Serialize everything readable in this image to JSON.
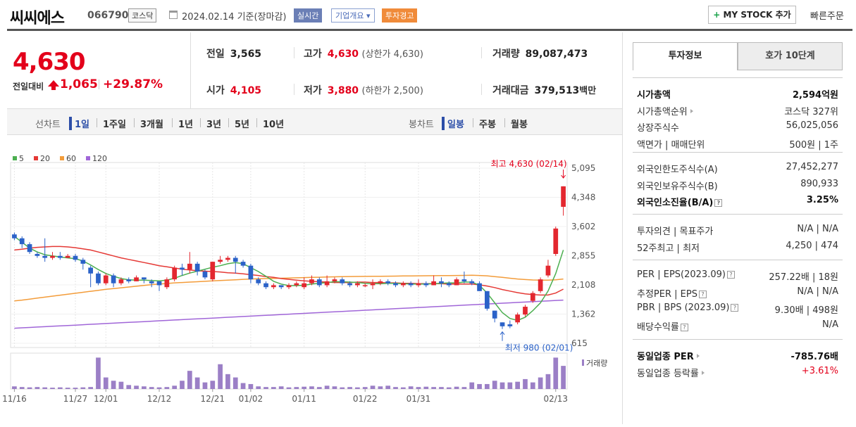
{
  "header": {
    "name": "씨씨에스",
    "code": "066790",
    "market": "코스닥",
    "date": "2024.02.14 기준(장마감)",
    "badge_realtime": "실시간",
    "badge_info": "기업개요 ▾",
    "badge_warn": "투자경고",
    "mystock_label": "MY STOCK 추가",
    "mystock_plus": "+",
    "quick_order": "빠른주문"
  },
  "price": {
    "current": "4,630",
    "prev_label": "전일대비",
    "change": "1,065",
    "change_pct": "+29.87%"
  },
  "stats": {
    "prev_close_label": "전일",
    "prev_close": "3,565",
    "high_label": "고가",
    "high": "4,630",
    "upper_limit": "(상한가 4,630)",
    "volume_label": "거래량",
    "volume": "89,087,473",
    "open_label": "시가",
    "open": "4,105",
    "low_label": "저가",
    "low": "3,880",
    "lower_limit": "(하한가 2,500)",
    "amount_label": "거래대금",
    "amount": "379,513",
    "amount_unit": "백만"
  },
  "chart_tabs": {
    "line_label": "선차트",
    "line_periods": [
      "1일",
      "1주일",
      "3개월",
      "1년",
      "3년",
      "5년",
      "10년"
    ],
    "candle_label": "봉차트",
    "candle_periods": [
      "일봉",
      "주봉",
      "월봉"
    ]
  },
  "chart_data": {
    "type": "candlestick",
    "legend": [
      {
        "name": "5",
        "color": "#4caf50"
      },
      {
        "name": "20",
        "color": "#e53935"
      },
      {
        "name": "60",
        "color": "#f39c3a"
      },
      {
        "name": "120",
        "color": "#a066d8"
      }
    ],
    "y_ticks": [
      "5,095",
      "4,348",
      "3,602",
      "2,855",
      "2,108",
      "1,362",
      "615"
    ],
    "ylim": [
      615,
      5095
    ],
    "x_labels": [
      "11/16",
      "11/27",
      "12/01",
      "12/12",
      "12/21",
      "01/02",
      "01/11",
      "01/22",
      "01/31",
      "02/13"
    ],
    "max_annotation": "최고 4,630 (02/14)",
    "min_annotation": "최저 980 (02/01)",
    "volume_label": "거래량",
    "candles": [
      [
        3400,
        3300,
        3450,
        3250
      ],
      [
        3300,
        3150,
        3350,
        3050
      ],
      [
        3150,
        2950,
        3200,
        2900
      ],
      [
        2900,
        2850,
        2950,
        2800
      ],
      [
        2850,
        2800,
        3300,
        2700
      ],
      [
        2800,
        2850,
        2950,
        2750
      ],
      [
        2850,
        2800,
        2950,
        2750
      ],
      [
        2800,
        2850,
        2900,
        2800
      ],
      [
        2850,
        2750,
        2900,
        2700
      ],
      [
        2750,
        2650,
        2800,
        2500
      ],
      [
        2550,
        2400,
        2600,
        2050
      ],
      [
        2400,
        2150,
        2450,
        2100
      ],
      [
        2150,
        2350,
        2400,
        2100
      ],
      [
        2350,
        2150,
        2400,
        2050
      ],
      [
        2150,
        2250,
        2300,
        2100
      ],
      [
        2250,
        2200,
        2300,
        2150
      ],
      [
        2200,
        2300,
        2350,
        2200
      ],
      [
        2300,
        2250,
        2300,
        2150
      ],
      [
        2200,
        2150,
        2250,
        2050
      ],
      [
        2200,
        2100,
        2200,
        1950
      ],
      [
        2050,
        2250,
        2300,
        2000
      ],
      [
        2250,
        2550,
        2600,
        2200
      ],
      [
        2550,
        2500,
        2650,
        2350
      ],
      [
        2500,
        2650,
        2950,
        2400
      ],
      [
        2650,
        2450,
        2700,
        2350
      ],
      [
        2450,
        2300,
        2500,
        2250
      ],
      [
        2250,
        2700,
        2700,
        2200
      ],
      [
        2700,
        2750,
        2850,
        2650
      ],
      [
        2750,
        2800,
        2850,
        2700
      ],
      [
        2800,
        2700,
        2850,
        2400
      ],
      [
        2700,
        2600,
        2750,
        2550
      ],
      [
        2600,
        2250,
        2650,
        2150
      ],
      [
        2250,
        2150,
        2300,
        2100
      ],
      [
        2150,
        2050,
        2200,
        2000
      ],
      [
        2050,
        2100,
        2150,
        2000
      ],
      [
        2100,
        2050,
        2100,
        2000
      ],
      [
        2050,
        2100,
        2150,
        2000
      ],
      [
        2100,
        2150,
        2200,
        2050
      ],
      [
        2050,
        2150,
        2300,
        2000
      ],
      [
        2150,
        2250,
        2350,
        2100
      ],
      [
        2250,
        2100,
        2300,
        2050
      ],
      [
        2100,
        2200,
        2350,
        2050
      ],
      [
        2200,
        2250,
        2300,
        2150
      ],
      [
        2250,
        2150,
        2300,
        2100
      ],
      [
        2150,
        2100,
        2200,
        2050
      ],
      [
        2100,
        2150,
        2200,
        2050
      ],
      [
        2100,
        2100,
        2150,
        2050
      ],
      [
        2100,
        2150,
        2250,
        2000
      ],
      [
        2150,
        2200,
        2250,
        2100
      ],
      [
        2200,
        2150,
        2250,
        2100
      ],
      [
        2150,
        2100,
        2200,
        2050
      ],
      [
        2100,
        2150,
        2200,
        2050
      ],
      [
        2150,
        2100,
        2200,
        2050
      ],
      [
        2100,
        2150,
        2250,
        2050
      ],
      [
        2150,
        2100,
        2200,
        2050
      ],
      [
        2100,
        2200,
        2350,
        2100
      ],
      [
        2200,
        2150,
        2300,
        2050
      ],
      [
        2150,
        2100,
        2200,
        2050
      ],
      [
        2100,
        2250,
        2300,
        2100
      ],
      [
        2250,
        2200,
        2450,
        2150
      ],
      [
        2200,
        2150,
        2250,
        2100
      ],
      [
        2150,
        1950,
        2200,
        1950
      ],
      [
        1950,
        1500,
        1950,
        1450
      ],
      [
        1450,
        1250,
        1450,
        1150
      ],
      [
        1150,
        1050,
        1150,
        980
      ],
      [
        1100,
        1050,
        1200,
        1000
      ],
      [
        1150,
        1350,
        1400,
        1100
      ],
      [
        1350,
        1550,
        1600,
        1300
      ],
      [
        1700,
        1900,
        1950,
        1650
      ],
      [
        1950,
        2250,
        2300,
        1900
      ],
      [
        2350,
        2600,
        2750,
        2300
      ],
      [
        2900,
        3550,
        3600,
        2850
      ],
      [
        4105,
        4630,
        4630,
        3880
      ]
    ],
    "ma5": [
      3350,
      3200,
      3050,
      2950,
      2880,
      2850,
      2820,
      2800,
      2780,
      2720,
      2620,
      2500,
      2400,
      2330,
      2270,
      2240,
      2230,
      2230,
      2220,
      2210,
      2230,
      2280,
      2350,
      2410,
      2460,
      2510,
      2560,
      2600,
      2650,
      2680,
      2650,
      2550,
      2450,
      2330,
      2200,
      2130,
      2090,
      2090,
      2100,
      2130,
      2150,
      2170,
      2190,
      2190,
      2180,
      2170,
      2150,
      2140,
      2140,
      2150,
      2150,
      2140,
      2130,
      2130,
      2130,
      2140,
      2150,
      2160,
      2160,
      2180,
      2180,
      2100,
      1900,
      1650,
      1400,
      1250,
      1200,
      1280,
      1450,
      1650,
      1950,
      2400,
      3000
    ],
    "ma20": [
      3000,
      3020,
      3050,
      3070,
      3080,
      3090,
      3090,
      3080,
      3060,
      3030,
      3000,
      2950,
      2900,
      2850,
      2800,
      2760,
      2720,
      2680,
      2640,
      2600,
      2570,
      2540,
      2510,
      2490,
      2470,
      2460,
      2450,
      2440,
      2420,
      2410,
      2390,
      2370,
      2350,
      2320,
      2300,
      2270,
      2250,
      2230,
      2210,
      2200,
      2190,
      2180,
      2170,
      2170,
      2170,
      2180,
      2180,
      2170,
      2170,
      2160,
      2160,
      2150,
      2150,
      2140,
      2140,
      2140,
      2140,
      2130,
      2130,
      2130,
      2130,
      2110,
      2080,
      2040,
      1990,
      1950,
      1910,
      1880,
      1860,
      1850,
      1850,
      1900,
      2000
    ],
    "ma60": [
      1700,
      1720,
      1745,
      1770,
      1795,
      1820,
      1845,
      1870,
      1895,
      1920,
      1945,
      1970,
      1995,
      2015,
      2035,
      2055,
      2075,
      2095,
      2115,
      2130,
      2145,
      2160,
      2170,
      2180,
      2190,
      2200,
      2210,
      2220,
      2230,
      2240,
      2250,
      2260,
      2265,
      2270,
      2275,
      2280,
      2285,
      2290,
      2295,
      2300,
      2305,
      2310,
      2315,
      2320,
      2322,
      2324,
      2326,
      2328,
      2330,
      2332,
      2334,
      2336,
      2338,
      2340,
      2342,
      2344,
      2346,
      2348,
      2350,
      2352,
      2354,
      2350,
      2340,
      2320,
      2300,
      2280,
      2260,
      2245,
      2235,
      2230,
      2230,
      2240,
      2260
    ],
    "ma120": [
      1000,
      1010,
      1020,
      1030,
      1040,
      1050,
      1060,
      1070,
      1080,
      1090,
      1100,
      1110,
      1120,
      1130,
      1140,
      1150,
      1160,
      1170,
      1180,
      1190,
      1200,
      1210,
      1220,
      1230,
      1240,
      1250,
      1260,
      1270,
      1280,
      1290,
      1300,
      1310,
      1320,
      1330,
      1340,
      1350,
      1360,
      1370,
      1380,
      1390,
      1400,
      1410,
      1420,
      1430,
      1440,
      1450,
      1460,
      1470,
      1480,
      1490,
      1500,
      1510,
      1520,
      1530,
      1540,
      1550,
      1560,
      1570,
      1580,
      1590,
      1600,
      1610,
      1620,
      1630,
      1640,
      1650,
      1660,
      1670,
      1680,
      1690,
      1700,
      1710,
      1720
    ],
    "volume": [
      0.08,
      0.06,
      0.05,
      0.06,
      0.05,
      0.04,
      0.05,
      0.04,
      0.04,
      0.05,
      0.06,
      0.95,
      0.35,
      0.25,
      0.22,
      0.12,
      0.1,
      0.08,
      0.06,
      0.05,
      0.06,
      0.1,
      0.25,
      0.55,
      0.35,
      0.2,
      0.25,
      0.75,
      0.45,
      0.35,
      0.18,
      0.15,
      0.08,
      0.06,
      0.06,
      0.08,
      0.05,
      0.06,
      0.07,
      0.08,
      0.06,
      0.1,
      0.08,
      0.05,
      0.06,
      0.05,
      0.06,
      0.1,
      0.08,
      0.1,
      0.06,
      0.05,
      0.08,
      0.06,
      0.07,
      0.06,
      0.06,
      0.05,
      0.07,
      0.06,
      0.2,
      0.15,
      0.15,
      0.25,
      0.2,
      0.2,
      0.22,
      0.3,
      0.2,
      0.35,
      0.45,
      0.95,
      0.7
    ]
  },
  "right_panel": {
    "tab_info": "투자정보",
    "tab_quote": "호가 10단계",
    "rows1": [
      {
        "k": "시가총액",
        "v": "2,594억원",
        "bold": true
      },
      {
        "k": "시가총액순위",
        "v": "코스닥 327위",
        "tri": true
      },
      {
        "k": "상장주식수",
        "v": "56,025,056"
      },
      {
        "k": "액면가 | 매매단위",
        "v": "500원 | 1주"
      }
    ],
    "rows2": [
      {
        "k": "외국인한도주식수(A)",
        "v": "27,452,277"
      },
      {
        "k": "외국인보유주식수(B)",
        "v": "890,933"
      },
      {
        "k": "외국인소진율(B/A)",
        "v": "3.25%",
        "bold": true,
        "q": true
      }
    ],
    "rows3": [
      {
        "k": "투자의견 | 목표주가",
        "v": "N/A | N/A"
      },
      {
        "k": "52주최고 | 최저",
        "v": "4,250 | 474"
      }
    ],
    "rows4": [
      {
        "k": "PER | EPS(2023.09)",
        "v": "257.22배 | 18원",
        "q": true
      },
      {
        "k": "추정PER | EPS",
        "v": "N/A | N/A",
        "q": true
      },
      {
        "k": "PBR | BPS (2023.09)",
        "v": "9.30배 | 498원",
        "q": true
      },
      {
        "k": "배당수익률",
        "v": "N/A",
        "q": true
      }
    ],
    "rows5": [
      {
        "k": "동일업종 PER",
        "v": "-785.76배",
        "bold": true,
        "tri": true
      },
      {
        "k": "동일업종 등락률",
        "v": "+3.61%",
        "tri": true,
        "red": true
      }
    ]
  }
}
